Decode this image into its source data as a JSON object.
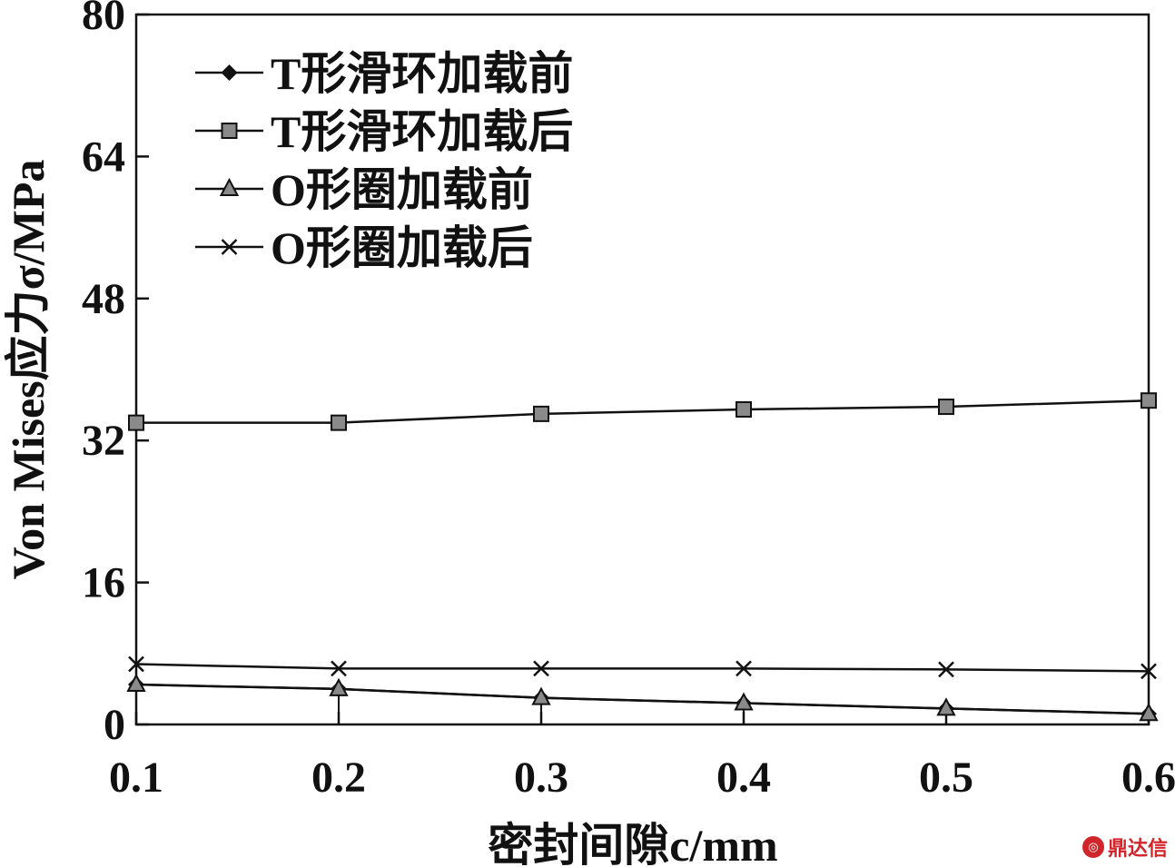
{
  "chart_data": {
    "type": "line",
    "title": "",
    "xlabel": "密封间隙c/mm",
    "ylabel": "Von Mises应力σ/MPa",
    "xlim": [
      0.1,
      0.6
    ],
    "ylim": [
      0,
      80
    ],
    "x": [
      0.1,
      0.2,
      0.3,
      0.4,
      0.5,
      0.6
    ],
    "x_ticks": [
      "0.1",
      "0.2",
      "0.3",
      "0.4",
      "0.5",
      "0.6"
    ],
    "y_ticks": [
      "0",
      "16",
      "32",
      "48",
      "64",
      "80"
    ],
    "grid": false,
    "legend_position": "top-left",
    "series": [
      {
        "name": "T形滑环加载前",
        "marker": "diamond",
        "values": [
          4.5,
          4.0,
          3.0,
          2.4,
          1.8,
          1.2
        ]
      },
      {
        "name": "T形滑环加载后",
        "marker": "square",
        "values": [
          34.0,
          34.0,
          35.0,
          35.5,
          35.8,
          36.5
        ]
      },
      {
        "name": "O形圈加载前",
        "marker": "triangle",
        "values": [
          4.5,
          4.0,
          3.0,
          2.4,
          1.8,
          1.2
        ]
      },
      {
        "name": "O形圈加载后",
        "marker": "x",
        "values": [
          6.8,
          6.3,
          6.3,
          6.3,
          6.2,
          6.0
        ]
      }
    ]
  },
  "watermark": {
    "icon": "logo-icon",
    "text": "鼎达信"
  }
}
